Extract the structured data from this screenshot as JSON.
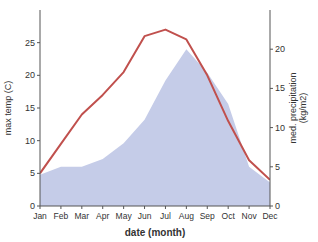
{
  "chart_data": {
    "type": "line",
    "categories": [
      "Jan",
      "Feb",
      "Mar",
      "Apr",
      "May",
      "Jun",
      "Jul",
      "Aug",
      "Sep",
      "Oct",
      "Nov",
      "Dec"
    ],
    "series": [
      {
        "type": "area",
        "axis": "y2",
        "color": "#c5cce8",
        "values": [
          4,
          5,
          5,
          6,
          8,
          11,
          16,
          20,
          17,
          13,
          5,
          3
        ]
      },
      {
        "type": "line",
        "axis": "y",
        "color": "#c0504d",
        "values": [
          5,
          9.5,
          14,
          17,
          20.5,
          26,
          27,
          25.5,
          20,
          13,
          7,
          4
        ]
      }
    ],
    "x_label": "date (month)",
    "y_label": "max temp (C)",
    "y2_label": "med. precipitation\n(kg/m2)",
    "ylim": [
      0,
      30
    ],
    "yticks": [
      0,
      5,
      10,
      15,
      20,
      25
    ],
    "y2lim": [
      0,
      25
    ],
    "y2ticks": [
      0,
      5,
      10,
      15,
      20
    ],
    "grid": false
  }
}
